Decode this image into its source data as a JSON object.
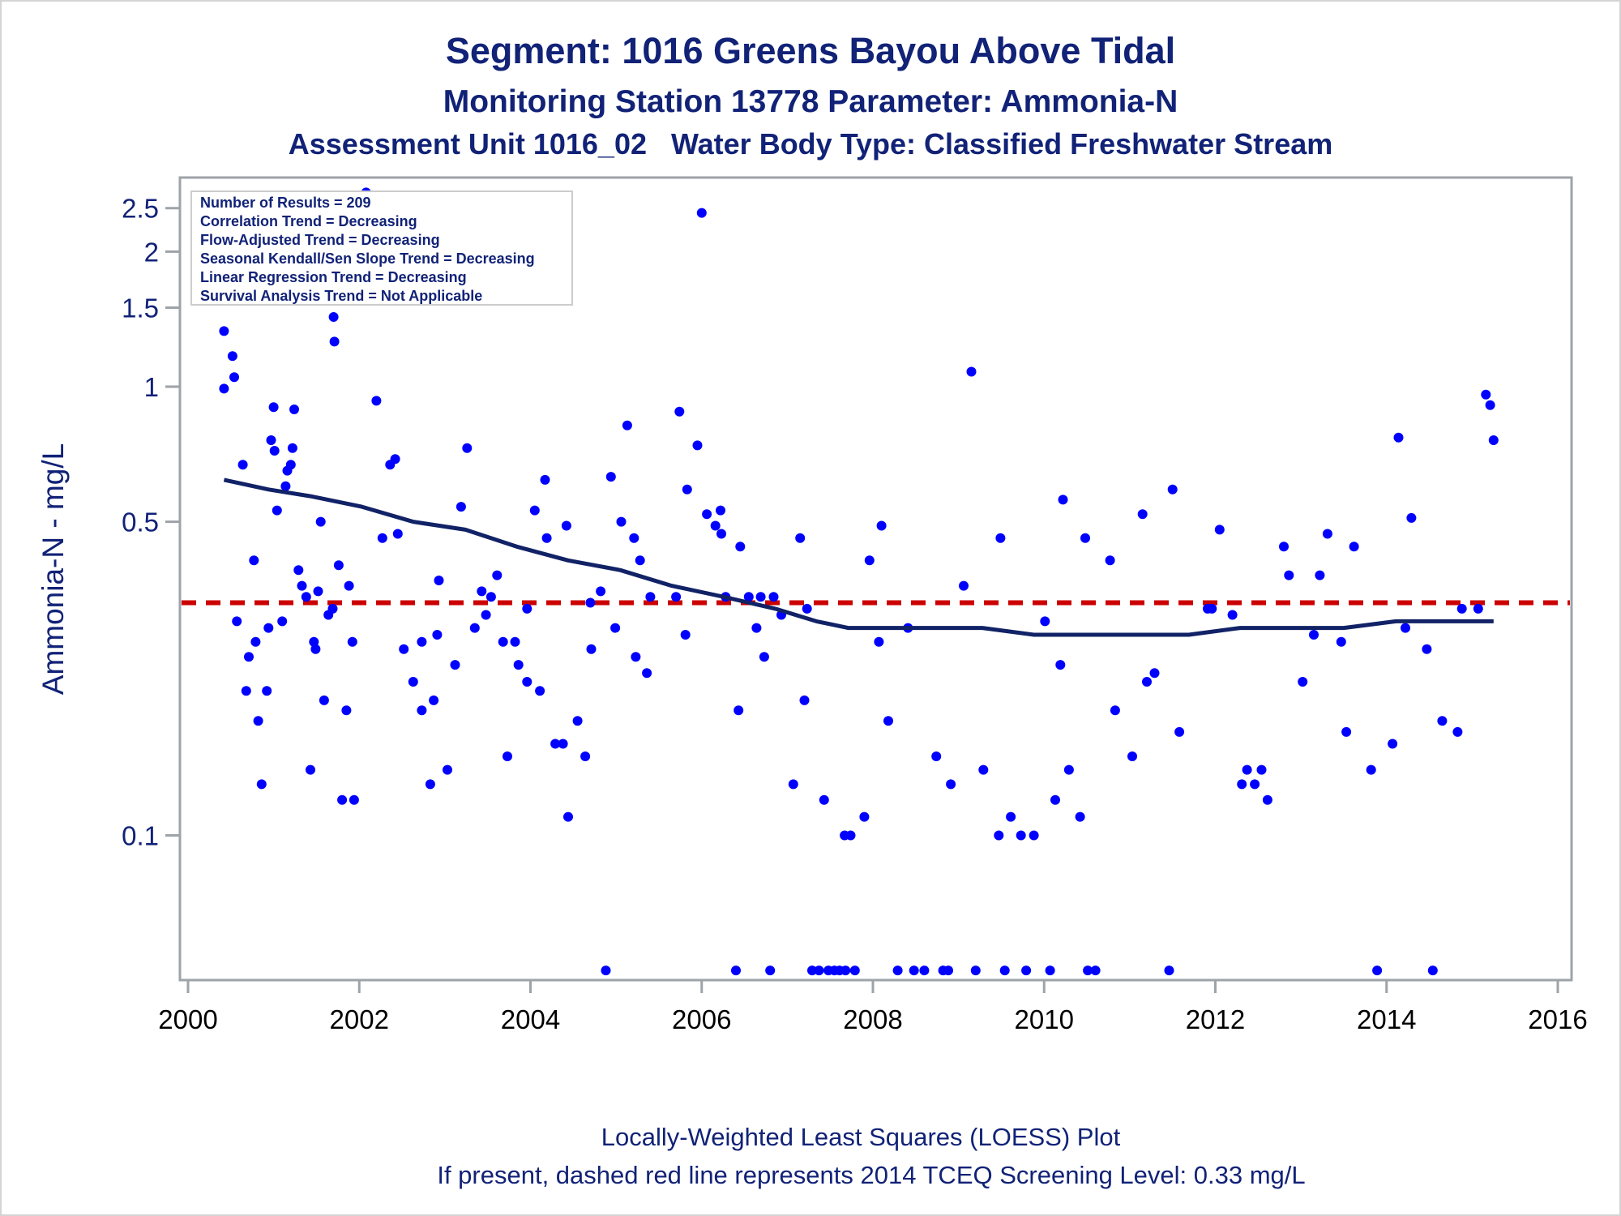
{
  "chart_data": {
    "type": "scatter",
    "title": "Segment: 1016  Greens Bayou Above Tidal",
    "subtitle": "Monitoring Station 13778 Parameter: Ammonia-N",
    "subtitle2": "Assessment Unit 1016_02   Water Body Type: Classified Freshwater Stream",
    "xlabel": "",
    "ylabel": "Ammonia-N - mg/L",
    "yscale": "log",
    "xlim": [
      2000,
      2016.2
    ],
    "ylim": [
      0.0476,
      2.92
    ],
    "grid": false,
    "xticks": [
      2000,
      2002,
      2004,
      2006,
      2008,
      2010,
      2012,
      2014,
      2016
    ],
    "xtick_labels": [
      "2000",
      "2002",
      "2004",
      "2006",
      "2008",
      "2010",
      "2012",
      "2014",
      "2016"
    ],
    "yticks": [
      0.1,
      0.5,
      1,
      1.5,
      2,
      2.5
    ],
    "ytick_labels": [
      "0.1",
      "0.5",
      "1",
      "1.5",
      "2",
      "2.5"
    ],
    "legend_position": "top-left",
    "stats_box": [
      "Number of Results = 209",
      "Correlation Trend = Decreasing",
      "Flow-Adjusted Trend = Decreasing",
      "Seasonal Kendall/Sen Slope Trend = Decreasing",
      "Linear Regression Trend = Decreasing",
      "Survival Analysis Trend = Not Applicable"
    ],
    "screening_level": {
      "value": 0.33,
      "label": "2014 TCEQ Screening Level",
      "color": "#cc0000",
      "style": "dashed"
    },
    "series": [
      {
        "name": "Observations",
        "kind": "scatter",
        "color": "#0000ff",
        "points": [
          [
            2000.42,
            0.99
          ],
          [
            2000.42,
            1.33
          ],
          [
            2000.47,
            1.57
          ],
          [
            2000.52,
            1.17
          ],
          [
            2000.54,
            1.05
          ],
          [
            2000.57,
            0.3
          ],
          [
            2000.64,
            0.67
          ],
          [
            2000.68,
            0.21
          ],
          [
            2000.71,
            0.25
          ],
          [
            2000.77,
            0.41
          ],
          [
            2000.79,
            0.27
          ],
          [
            2000.82,
            0.18
          ],
          [
            2000.86,
            0.13
          ],
          [
            2000.92,
            0.21
          ],
          [
            2000.94,
            0.29
          ],
          [
            2000.97,
            0.76
          ],
          [
            2001.0,
            0.9
          ],
          [
            2001.01,
            0.72
          ],
          [
            2001.04,
            0.53
          ],
          [
            2001.1,
            0.3
          ],
          [
            2001.14,
            0.6
          ],
          [
            2001.16,
            0.65
          ],
          [
            2001.2,
            0.67
          ],
          [
            2001.22,
            0.73
          ],
          [
            2001.24,
            0.89
          ],
          [
            2001.29,
            0.39
          ],
          [
            2001.33,
            0.36
          ],
          [
            2001.38,
            0.34
          ],
          [
            2001.43,
            0.14
          ],
          [
            2001.47,
            0.27
          ],
          [
            2001.49,
            0.26
          ],
          [
            2001.52,
            0.35
          ],
          [
            2001.55,
            0.5
          ],
          [
            2001.59,
            0.2
          ],
          [
            2001.64,
            0.31
          ],
          [
            2001.69,
            0.32
          ],
          [
            2001.7,
            1.43
          ],
          [
            2001.71,
            1.26
          ],
          [
            2001.76,
            0.4
          ],
          [
            2001.8,
            0.12
          ],
          [
            2001.85,
            0.19
          ],
          [
            2001.88,
            0.36
          ],
          [
            2001.92,
            0.27
          ],
          [
            2001.94,
            0.12
          ],
          [
            2002.08,
            2.71
          ],
          [
            2002.14,
            2.31
          ],
          [
            2002.19,
            1.91
          ],
          [
            2002.2,
            0.93
          ],
          [
            2002.27,
            0.46
          ],
          [
            2002.36,
            0.67
          ],
          [
            2002.42,
            0.69
          ],
          [
            2002.45,
            0.47
          ],
          [
            2002.52,
            0.26
          ],
          [
            2002.63,
            0.22
          ],
          [
            2002.73,
            0.27
          ],
          [
            2002.73,
            0.19
          ],
          [
            2002.83,
            0.13
          ],
          [
            2002.87,
            0.2
          ],
          [
            2002.91,
            0.28
          ],
          [
            2002.93,
            0.37
          ],
          [
            2003.03,
            0.14
          ],
          [
            2003.12,
            0.24
          ],
          [
            2003.19,
            0.54
          ],
          [
            2003.26,
            0.73
          ],
          [
            2003.35,
            0.29
          ],
          [
            2003.43,
            0.35
          ],
          [
            2003.48,
            0.31
          ],
          [
            2003.54,
            0.34
          ],
          [
            2003.61,
            0.38
          ],
          [
            2003.68,
            0.27
          ],
          [
            2003.73,
            0.15
          ],
          [
            2003.82,
            0.27
          ],
          [
            2003.86,
            0.24
          ],
          [
            2003.96,
            0.32
          ],
          [
            2003.96,
            0.22
          ],
          [
            2004.05,
            0.53
          ],
          [
            2004.11,
            0.21
          ],
          [
            2004.17,
            0.62
          ],
          [
            2004.19,
            0.46
          ],
          [
            2004.29,
            0.16
          ],
          [
            2004.38,
            0.16
          ],
          [
            2004.42,
            0.49
          ],
          [
            2004.44,
            0.11
          ],
          [
            2004.55,
            0.18
          ],
          [
            2004.64,
            0.15
          ],
          [
            2004.7,
            0.33
          ],
          [
            2004.71,
            0.26
          ],
          [
            2004.82,
            0.35
          ],
          [
            2004.88,
            0.05
          ],
          [
            2004.94,
            0.63
          ],
          [
            2004.99,
            0.29
          ],
          [
            2005.06,
            0.5
          ],
          [
            2005.13,
            0.82
          ],
          [
            2005.21,
            0.46
          ],
          [
            2005.23,
            0.25
          ],
          [
            2005.28,
            0.41
          ],
          [
            2005.36,
            0.23
          ],
          [
            2005.4,
            0.34
          ],
          [
            2005.7,
            0.34
          ],
          [
            2005.74,
            0.88
          ],
          [
            2005.81,
            0.28
          ],
          [
            2005.83,
            0.59
          ],
          [
            2005.95,
            0.74
          ],
          [
            2006.0,
            2.44
          ],
          [
            2006.06,
            0.52
          ],
          [
            2006.16,
            0.49
          ],
          [
            2006.22,
            0.53
          ],
          [
            2006.23,
            0.47
          ],
          [
            2006.28,
            0.34
          ],
          [
            2006.4,
            0.05
          ],
          [
            2006.43,
            0.19
          ],
          [
            2006.45,
            0.44
          ],
          [
            2006.55,
            0.34
          ],
          [
            2006.64,
            0.29
          ],
          [
            2006.69,
            0.34
          ],
          [
            2006.73,
            0.25
          ],
          [
            2006.8,
            0.05
          ],
          [
            2006.84,
            0.34
          ],
          [
            2006.93,
            0.31
          ],
          [
            2007.07,
            0.13
          ],
          [
            2007.15,
            0.46
          ],
          [
            2007.2,
            0.2
          ],
          [
            2007.23,
            0.32
          ],
          [
            2007.29,
            0.05
          ],
          [
            2007.37,
            0.05
          ],
          [
            2007.43,
            0.12
          ],
          [
            2007.48,
            0.05
          ],
          [
            2007.55,
            0.05
          ],
          [
            2007.61,
            0.05
          ],
          [
            2007.67,
            0.1
          ],
          [
            2007.68,
            0.05
          ],
          [
            2007.74,
            0.1
          ],
          [
            2007.79,
            0.05
          ],
          [
            2007.9,
            0.11
          ],
          [
            2007.96,
            0.41
          ],
          [
            2008.07,
            0.27
          ],
          [
            2008.1,
            0.49
          ],
          [
            2008.18,
            0.18
          ],
          [
            2008.29,
            0.05
          ],
          [
            2008.41,
            0.29
          ],
          [
            2008.48,
            0.05
          ],
          [
            2008.6,
            0.05
          ],
          [
            2008.74,
            0.15
          ],
          [
            2008.82,
            0.05
          ],
          [
            2008.88,
            0.05
          ],
          [
            2008.91,
            0.13
          ],
          [
            2009.06,
            0.36
          ],
          [
            2009.15,
            1.08
          ],
          [
            2009.2,
            0.05
          ],
          [
            2009.29,
            0.14
          ],
          [
            2009.47,
            0.1
          ],
          [
            2009.49,
            0.46
          ],
          [
            2009.54,
            0.05
          ],
          [
            2009.61,
            0.11
          ],
          [
            2009.73,
            0.1
          ],
          [
            2009.79,
            0.05
          ],
          [
            2009.88,
            0.1
          ],
          [
            2010.01,
            0.3
          ],
          [
            2010.07,
            0.05
          ],
          [
            2010.13,
            0.12
          ],
          [
            2010.19,
            0.24
          ],
          [
            2010.22,
            0.56
          ],
          [
            2010.29,
            0.14
          ],
          [
            2010.42,
            0.11
          ],
          [
            2010.48,
            0.46
          ],
          [
            2010.51,
            0.05
          ],
          [
            2010.6,
            0.05
          ],
          [
            2010.77,
            0.41
          ],
          [
            2010.83,
            0.19
          ],
          [
            2011.03,
            0.15
          ],
          [
            2011.15,
            0.52
          ],
          [
            2011.2,
            0.22
          ],
          [
            2011.29,
            0.23
          ],
          [
            2011.46,
            0.05
          ],
          [
            2011.5,
            0.59
          ],
          [
            2011.58,
            0.17
          ],
          [
            2011.91,
            0.32
          ],
          [
            2011.96,
            0.32
          ],
          [
            2012.05,
            0.48
          ],
          [
            2012.2,
            0.31
          ],
          [
            2012.31,
            0.13
          ],
          [
            2012.37,
            0.14
          ],
          [
            2012.46,
            0.13
          ],
          [
            2012.54,
            0.14
          ],
          [
            2012.61,
            0.12
          ],
          [
            2012.8,
            0.44
          ],
          [
            2012.86,
            0.38
          ],
          [
            2013.02,
            0.22
          ],
          [
            2013.15,
            0.28
          ],
          [
            2013.22,
            0.38
          ],
          [
            2013.31,
            0.47
          ],
          [
            2013.47,
            0.27
          ],
          [
            2013.53,
            0.17
          ],
          [
            2013.62,
            0.44
          ],
          [
            2013.82,
            0.14
          ],
          [
            2013.89,
            0.05
          ],
          [
            2014.07,
            0.16
          ],
          [
            2014.14,
            0.77
          ],
          [
            2014.22,
            0.29
          ],
          [
            2014.29,
            0.51
          ],
          [
            2014.47,
            0.26
          ],
          [
            2014.54,
            0.05
          ],
          [
            2014.65,
            0.18
          ],
          [
            2014.83,
            0.17
          ],
          [
            2014.88,
            0.32
          ],
          [
            2015.07,
            0.32
          ],
          [
            2015.16,
            0.96
          ],
          [
            2015.21,
            0.91
          ],
          [
            2015.25,
            0.76
          ]
        ]
      },
      {
        "name": "LOESS fit",
        "kind": "line",
        "color": "#112266",
        "points": [
          [
            2000.42,
            0.62
          ],
          [
            2000.94,
            0.59
          ],
          [
            2001.43,
            0.57
          ],
          [
            2002.03,
            0.54
          ],
          [
            2002.63,
            0.5
          ],
          [
            2003.24,
            0.48
          ],
          [
            2003.84,
            0.44
          ],
          [
            2004.44,
            0.41
          ],
          [
            2005.05,
            0.39
          ],
          [
            2005.65,
            0.36
          ],
          [
            2006.26,
            0.34
          ],
          [
            2006.86,
            0.32
          ],
          [
            2007.34,
            0.3
          ],
          [
            2007.71,
            0.29
          ],
          [
            2008.19,
            0.29
          ],
          [
            2008.67,
            0.29
          ],
          [
            2009.28,
            0.29
          ],
          [
            2009.88,
            0.28
          ],
          [
            2010.48,
            0.28
          ],
          [
            2011.09,
            0.28
          ],
          [
            2011.69,
            0.28
          ],
          [
            2012.29,
            0.29
          ],
          [
            2012.9,
            0.29
          ],
          [
            2013.5,
            0.29
          ],
          [
            2014.11,
            0.3
          ],
          [
            2014.71,
            0.3
          ],
          [
            2015.25,
            0.3
          ]
        ]
      }
    ],
    "footnote": "Locally-Weighted Least Squares (LOESS) Plot",
    "footnote2": "If present, dashed red line represents 2014 TCEQ Screening Level: 0.33 mg/L"
  }
}
